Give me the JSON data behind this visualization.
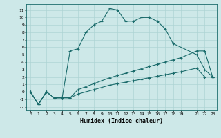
{
  "xlabel": "Humidex (Indice chaleur)",
  "background_color": "#cde8e8",
  "grid_color": "#aed4d4",
  "line_color": "#1a6b6b",
  "xlim": [
    -0.5,
    23.5
  ],
  "ylim": [
    -2.5,
    11.8
  ],
  "xticks": [
    0,
    1,
    2,
    3,
    4,
    5,
    6,
    7,
    8,
    9,
    10,
    11,
    12,
    13,
    14,
    15,
    16,
    17,
    18,
    19,
    21,
    22,
    23
  ],
  "yticks": [
    -2,
    -1,
    0,
    1,
    2,
    3,
    4,
    5,
    6,
    7,
    8,
    9,
    10,
    11
  ],
  "line1_x": [
    0,
    1,
    2,
    3,
    4,
    5,
    6,
    7,
    8,
    9,
    10,
    11,
    12,
    13,
    14,
    15,
    16,
    17,
    18,
    21,
    22,
    23
  ],
  "line1_y": [
    0,
    -1.7,
    0,
    -0.8,
    -0.8,
    5.5,
    5.8,
    8.0,
    9.0,
    9.5,
    11.2,
    11.0,
    9.5,
    9.5,
    10.0,
    10.0,
    9.5,
    8.5,
    6.5,
    5.0,
    3.0,
    2.0
  ],
  "line2_x": [
    0,
    1,
    2,
    3,
    4,
    5,
    6,
    7,
    8,
    9,
    10,
    11,
    12,
    13,
    14,
    15,
    16,
    17,
    18,
    19,
    21,
    22,
    23
  ],
  "line2_y": [
    0,
    -1.7,
    0,
    -0.8,
    -0.8,
    -0.8,
    0.3,
    0.7,
    1.1,
    1.5,
    1.9,
    2.2,
    2.5,
    2.8,
    3.1,
    3.4,
    3.7,
    4.0,
    4.3,
    4.6,
    5.5,
    5.5,
    2.0
  ],
  "line3_x": [
    0,
    1,
    2,
    3,
    4,
    5,
    6,
    7,
    8,
    9,
    10,
    11,
    12,
    13,
    14,
    15,
    16,
    17,
    18,
    19,
    21,
    22,
    23
  ],
  "line3_y": [
    0,
    -1.7,
    0,
    -0.8,
    -0.8,
    -0.8,
    -0.3,
    0.0,
    0.3,
    0.6,
    0.9,
    1.1,
    1.3,
    1.5,
    1.7,
    1.9,
    2.1,
    2.3,
    2.5,
    2.7,
    3.2,
    2.0,
    2.0
  ]
}
